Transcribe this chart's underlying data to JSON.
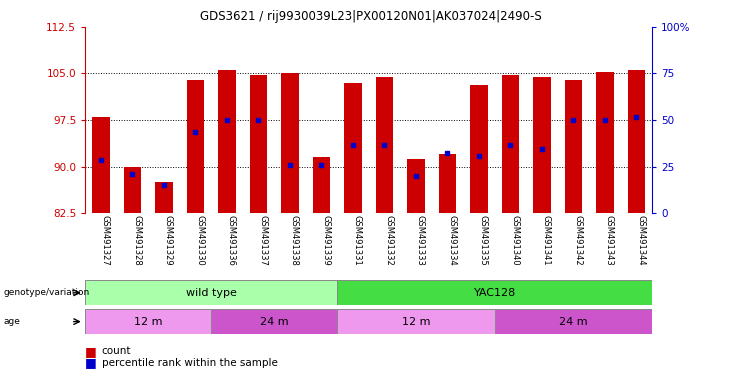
{
  "title": "GDS3621 / rij9930039L23|PX00120N01|AK037024|2490-S",
  "samples": [
    "GSM491327",
    "GSM491328",
    "GSM491329",
    "GSM491330",
    "GSM491336",
    "GSM491337",
    "GSM491338",
    "GSM491339",
    "GSM491331",
    "GSM491332",
    "GSM491333",
    "GSM491334",
    "GSM491335",
    "GSM491340",
    "GSM491341",
    "GSM491342",
    "GSM491343",
    "GSM491344"
  ],
  "bar_tops": [
    98.0,
    90.0,
    87.5,
    104.0,
    105.5,
    104.8,
    105.0,
    91.5,
    103.5,
    104.5,
    91.2,
    92.0,
    103.2,
    104.7,
    104.5,
    104.0,
    105.2,
    105.5
  ],
  "blue_dot_y": [
    91.0,
    88.8,
    87.0,
    95.5,
    97.5,
    97.5,
    90.2,
    90.2,
    93.5,
    93.5,
    88.5,
    92.2,
    91.7,
    93.5,
    92.8,
    97.5,
    97.5,
    98.0
  ],
  "bar_base": 82.5,
  "ylim_left": [
    82.5,
    112.5
  ],
  "ylim_right": [
    0,
    100
  ],
  "yticks_left": [
    82.5,
    90.0,
    97.5,
    105.0,
    112.5
  ],
  "yticks_right": [
    0,
    25,
    50,
    75,
    100
  ],
  "bar_color": "#cc0000",
  "blue_color": "#0000cc",
  "genotype_groups": [
    {
      "label": "wild type",
      "start": 0,
      "end": 7,
      "color": "#aaffaa"
    },
    {
      "label": "YAC128",
      "start": 8,
      "end": 17,
      "color": "#44dd44"
    }
  ],
  "age_groups": [
    {
      "label": "12 m",
      "start": 0,
      "end": 3,
      "color": "#ee99ee"
    },
    {
      "label": "24 m",
      "start": 4,
      "end": 7,
      "color": "#cc55cc"
    },
    {
      "label": "12 m",
      "start": 8,
      "end": 12,
      "color": "#ee99ee"
    },
    {
      "label": "24 m",
      "start": 13,
      "end": 17,
      "color": "#cc55cc"
    }
  ],
  "bar_width": 0.55,
  "left_ylabel_color": "#cc0000",
  "right_ylabel_color": "#0000cc",
  "legend_count_color": "#cc0000",
  "legend_percentile_color": "#0000cc"
}
